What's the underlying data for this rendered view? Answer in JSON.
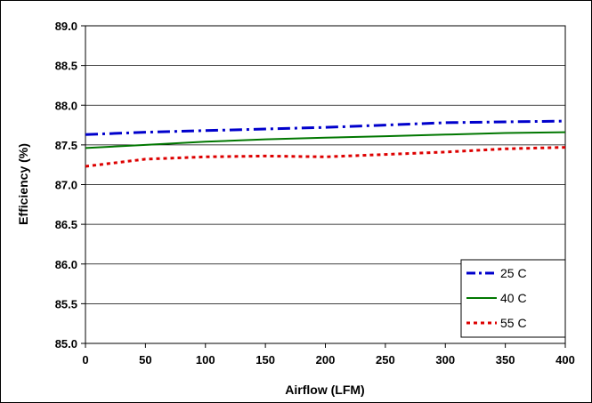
{
  "chart_data": {
    "type": "line",
    "title": "",
    "xlabel": "Airflow (LFM)",
    "ylabel": "Efficiency (%)",
    "xlim": [
      0,
      400
    ],
    "ylim": [
      85.0,
      89.0
    ],
    "xticks": [
      "0",
      "50",
      "100",
      "150",
      "200",
      "250",
      "300",
      "350",
      "400"
    ],
    "yticks": [
      "85.0",
      "85.5",
      "86.0",
      "86.5",
      "87.0",
      "87.5",
      "88.0",
      "88.5",
      "89.0"
    ],
    "grid": "horizontal",
    "legend_position": "bottom-right",
    "series": [
      {
        "name": "25 C",
        "color": "#0000cc",
        "line_style": "dash-dot",
        "x": [
          0,
          50,
          100,
          150,
          200,
          250,
          300,
          350,
          400
        ],
        "values": [
          87.63,
          87.66,
          87.68,
          87.7,
          87.72,
          87.75,
          87.78,
          87.79,
          87.8
        ]
      },
      {
        "name": "40 C",
        "color": "#007700",
        "line_style": "solid",
        "x": [
          0,
          50,
          100,
          150,
          200,
          250,
          300,
          350,
          400
        ],
        "values": [
          87.46,
          87.5,
          87.54,
          87.57,
          87.59,
          87.61,
          87.63,
          87.65,
          87.66
        ]
      },
      {
        "name": "55 C",
        "color": "#dd0000",
        "line_style": "dotted",
        "x": [
          0,
          50,
          100,
          150,
          200,
          250,
          300,
          350,
          400
        ],
        "values": [
          87.23,
          87.32,
          87.35,
          87.36,
          87.35,
          87.38,
          87.41,
          87.45,
          87.47
        ]
      }
    ]
  }
}
